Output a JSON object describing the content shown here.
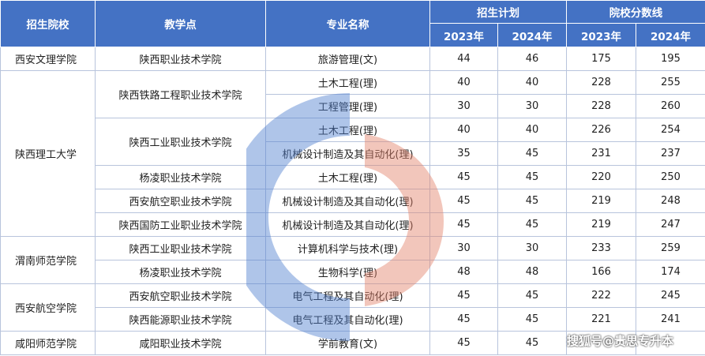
{
  "headers": {
    "school": "招生院校",
    "site": "教学点",
    "major": "专业名称",
    "plan": "招生计划",
    "score": "院校分数线",
    "y2023": "2023年",
    "y2024": "2024年"
  },
  "rows": [
    {
      "school": "西安文理学院",
      "site": "陕西职业技术学院",
      "major": "旅游管理(文)",
      "p23": "44",
      "p24": "46",
      "s23": "175",
      "s24": "195"
    },
    {
      "school": "陕西理工大学",
      "site": "陕西铁路工程职业技术学院",
      "major": "土木工程(理)",
      "p23": "40",
      "p24": "40",
      "s23": "228",
      "s24": "255"
    },
    {
      "school": "",
      "site": "",
      "major": "工程管理(理)",
      "p23": "30",
      "p24": "30",
      "s23": "228",
      "s24": "260"
    },
    {
      "school": "",
      "site": "陕西工业职业技术学院",
      "major": "土木工程(理)",
      "p23": "40",
      "p24": "40",
      "s23": "226",
      "s24": "254"
    },
    {
      "school": "",
      "site": "",
      "major": "机械设计制造及其自动化(理)",
      "p23": "35",
      "p24": "45",
      "s23": "231",
      "s24": "237"
    },
    {
      "school": "",
      "site": "杨凌职业技术学院",
      "major": "土木工程(理)",
      "p23": "45",
      "p24": "45",
      "s23": "220",
      "s24": "250"
    },
    {
      "school": "",
      "site": "西安航空职业技术学院",
      "major": "机械设计制造及其自动化(理)",
      "p23": "45",
      "p24": "45",
      "s23": "219",
      "s24": "248"
    },
    {
      "school": "",
      "site": "陕西国防工业职业技术学院",
      "major": "机械设计制造及其自动化(理)",
      "p23": "45",
      "p24": "45",
      "s23": "219",
      "s24": "247"
    },
    {
      "school": "渭南师范学院",
      "site": "陕西工业职业技术学院",
      "major": "计算机科学与技术(理)",
      "p23": "30",
      "p24": "30",
      "s23": "233",
      "s24": "259"
    },
    {
      "school": "",
      "site": "杨凌职业技术学院",
      "major": "生物科学(理)",
      "p23": "48",
      "p24": "48",
      "s23": "166",
      "s24": "174"
    },
    {
      "school": "西安航空学院",
      "site": "西安航空职业技术学院",
      "major": "电气工程及其自动化(理)",
      "p23": "45",
      "p24": "45",
      "s23": "222",
      "s24": "245"
    },
    {
      "school": "",
      "site": "陕西能源职业技术学院",
      "major": "电气工程及其自动化(理)",
      "p23": "45",
      "p24": "45",
      "s23": "221",
      "s24": "241"
    },
    {
      "school": "咸阳师范学院",
      "site": "咸阳职业技术学院",
      "major": "学前教育(文)",
      "p23": "45",
      "p24": "45",
      "s23": "",
      "s24": ""
    }
  ],
  "watermark": {
    "text": "搜狐号@贵思专升本",
    "colors": {
      "blue": "#4f7fd0",
      "red": "#e4826a"
    }
  },
  "colors": {
    "header_bg": "#4472c4",
    "border": "#b8c4dc"
  }
}
